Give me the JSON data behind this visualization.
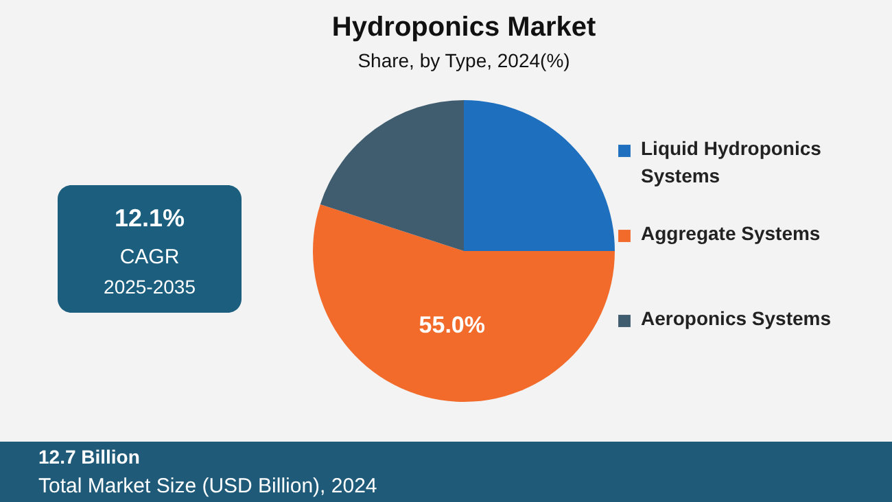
{
  "chart_data": {
    "type": "pie",
    "title": "Hydroponics Market",
    "subtitle": "Share, by Type, 2024(%)",
    "categories": [
      "Liquid Hydroponics Systems",
      "Aggregate Systems",
      "Aeroponics Systems"
    ],
    "values": [
      25,
      55,
      20
    ],
    "colors": [
      "#1f6fbf",
      "#f26b2b",
      "#3f5d6f"
    ],
    "value_labels": [
      null,
      "55.0%",
      null
    ],
    "legend": "right",
    "annotations": [
      "12.1%",
      "CAGR",
      "2025-2035",
      "12.7 Billion",
      "Total Market Size (USD Billion), 2024"
    ]
  }
}
